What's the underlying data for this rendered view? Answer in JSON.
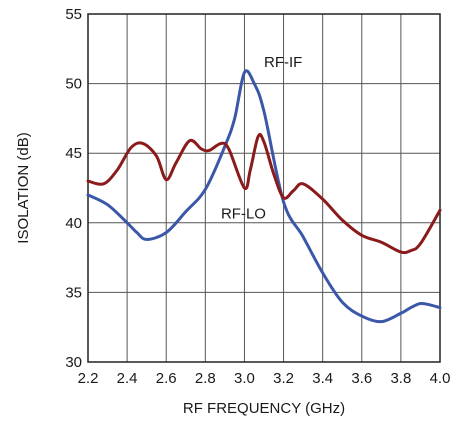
{
  "chart_data": {
    "type": "line",
    "xlabel": "RF FREQUENCY (GHz)",
    "ylabel": "ISOLATION (dB)",
    "xlim": [
      2.2,
      4.0
    ],
    "ylim": [
      30,
      55
    ],
    "xticks": [
      "2.2",
      "2.4",
      "2.6",
      "2.8",
      "3.0",
      "3.2",
      "3.4",
      "3.6",
      "3.8",
      "4.0"
    ],
    "yticks": [
      "30",
      "35",
      "40",
      "45",
      "50",
      "55"
    ],
    "grid": true,
    "colors": {
      "rf_if": "#3b57a8",
      "rf_lo": "#8b1a1a",
      "grid": "#555555",
      "axis": "#222222"
    },
    "series": [
      {
        "name": "RF-IF",
        "color": "#3b57a8",
        "x": [
          2.2,
          2.3,
          2.4,
          2.45,
          2.5,
          2.6,
          2.7,
          2.8,
          2.9,
          2.95,
          3.0,
          3.05,
          3.1,
          3.2,
          3.3,
          3.4,
          3.5,
          3.6,
          3.7,
          3.8,
          3.85,
          3.9,
          3.95,
          4.0
        ],
        "y": [
          42.0,
          41.3,
          40.0,
          39.3,
          38.8,
          39.3,
          40.8,
          42.4,
          45.5,
          47.5,
          50.8,
          50.0,
          48.0,
          41.5,
          39.0,
          36.4,
          34.3,
          33.3,
          32.9,
          33.5,
          33.9,
          34.2,
          34.1,
          33.9
        ]
      },
      {
        "name": "RF-LO",
        "color": "#8b1a1a",
        "x": [
          2.2,
          2.28,
          2.35,
          2.42,
          2.48,
          2.55,
          2.6,
          2.65,
          2.72,
          2.78,
          2.82,
          2.88,
          2.92,
          3.0,
          3.03,
          3.07,
          3.1,
          3.15,
          3.2,
          3.25,
          3.3,
          3.4,
          3.5,
          3.6,
          3.7,
          3.8,
          3.85,
          3.9,
          4.0
        ],
        "y": [
          43.0,
          42.8,
          43.8,
          45.4,
          45.7,
          44.8,
          43.1,
          44.3,
          45.9,
          45.3,
          45.2,
          45.7,
          45.3,
          42.5,
          43.8,
          46.2,
          45.8,
          43.5,
          41.8,
          42.3,
          42.8,
          41.7,
          40.2,
          39.1,
          38.6,
          37.9,
          38.0,
          38.5,
          40.9
        ]
      }
    ],
    "annotations": [
      {
        "text": "RF-IF",
        "x": 3.1,
        "y": 51.2
      },
      {
        "text": "RF-LO",
        "x": 2.88,
        "y": 40.3
      }
    ]
  }
}
